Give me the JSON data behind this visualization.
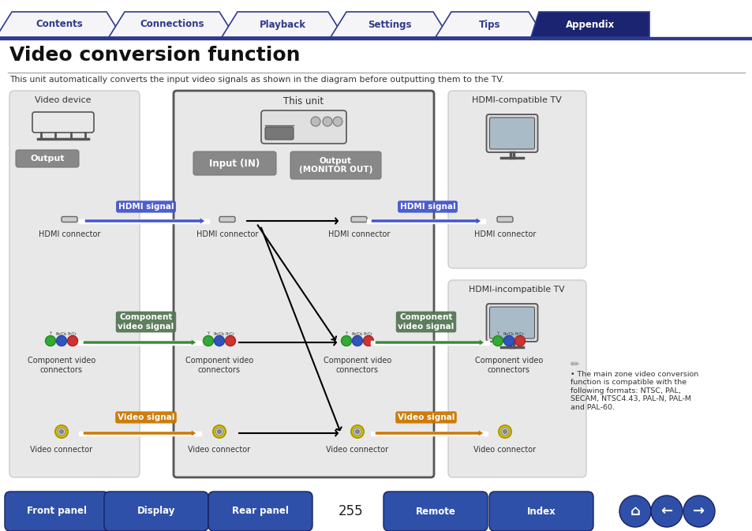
{
  "title": "Video conversion function",
  "subtitle": "This unit automatically converts the input video signals as shown in the diagram before outputting them to the TV.",
  "nav_tabs": [
    "Contents",
    "Connections",
    "Playback",
    "Settings",
    "Tips",
    "Appendix"
  ],
  "footer_buttons": [
    "Front panel",
    "Display",
    "Rear panel",
    "Remote",
    "Index"
  ],
  "page_number": "255",
  "note_text": "The main zone video conversion\nfunction is compatible with the\nfollowing formats: NTSC, PAL,\nSECAM, NTSC4.43, PAL-N, PAL-M\nand PAL-60.",
  "nav_blue": "#2e3a8c",
  "nav_active_bg": "#1a2470",
  "footer_blue": "#3040a0",
  "hdmi_blue": "#4455cc",
  "component_green": "#3a8a3a",
  "video_orange": "#cc7700",
  "gray_bg": "#e6e6e6",
  "unit_bg": "#e8e8e8",
  "dark_gray_label": "#888888",
  "white": "#ffffff"
}
